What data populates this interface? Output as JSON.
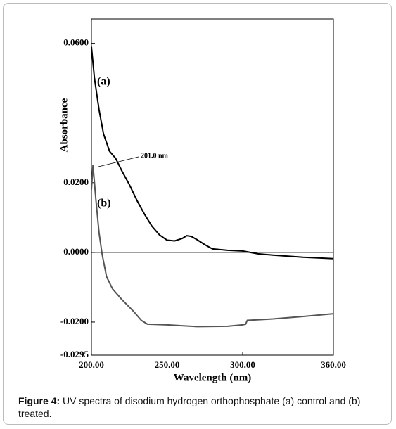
{
  "chart_data": {
    "type": "line",
    "x_label": "Wavelength (nm)",
    "y_label": "Absorbance",
    "xlim": [
      200,
      360
    ],
    "ylim": [
      -0.0295,
      0.067
    ],
    "xticks": [
      {
        "value": 200,
        "label": "200.00"
      },
      {
        "value": 250,
        "label": "250.00"
      },
      {
        "value": 300,
        "label": "300.00"
      },
      {
        "value": 360,
        "label": "360.00"
      }
    ],
    "yticks": [
      {
        "value": 0.06,
        "label": "0.0600"
      },
      {
        "value": 0.02,
        "label": "0.0200"
      },
      {
        "value": 0,
        "label": "0.0000"
      },
      {
        "value": -0.02,
        "label": "-0.0200"
      },
      {
        "value": -0.0295,
        "label": "-0.0295"
      }
    ],
    "zero_line": true,
    "annotations": {
      "a": "(a)",
      "b": "(b)",
      "peak": "201.0 nm"
    },
    "series": [
      {
        "color": "#000000",
        "x": [
          200,
          202,
          205,
          208,
          212,
          216,
          220,
          225,
          230,
          235,
          240,
          245,
          250,
          255,
          260,
          263,
          266,
          270,
          275,
          280,
          290,
          300,
          310,
          320,
          340,
          360
        ],
        "values": [
          0.059,
          0.05,
          0.041,
          0.034,
          0.029,
          0.027,
          0.0235,
          0.0195,
          0.015,
          0.011,
          0.0075,
          0.005,
          0.0035,
          0.0033,
          0.004,
          0.0048,
          0.0046,
          0.0036,
          0.0022,
          0.001,
          0.0006,
          0.0004,
          -0.0004,
          -0.0008,
          -0.0014,
          -0.0018
        ]
      },
      {
        "color": "#555555",
        "x": [
          200,
          201,
          203,
          205,
          207,
          210,
          214,
          220,
          228,
          233,
          237,
          250,
          270,
          290,
          300,
          302,
          303,
          320,
          340,
          360
        ],
        "values": [
          0.018,
          0.025,
          0.015,
          0.0057,
          -0.0004,
          -0.007,
          -0.0105,
          -0.0135,
          -0.017,
          -0.0195,
          -0.0206,
          -0.0208,
          -0.0213,
          -0.0212,
          -0.0208,
          -0.0206,
          -0.0195,
          -0.0191,
          -0.0184,
          -0.0176
        ]
      }
    ]
  },
  "caption": {
    "label": "Figure 4:",
    "text": " UV spectra of disodium hydrogen orthophosphate (a) control and (b) treated."
  }
}
